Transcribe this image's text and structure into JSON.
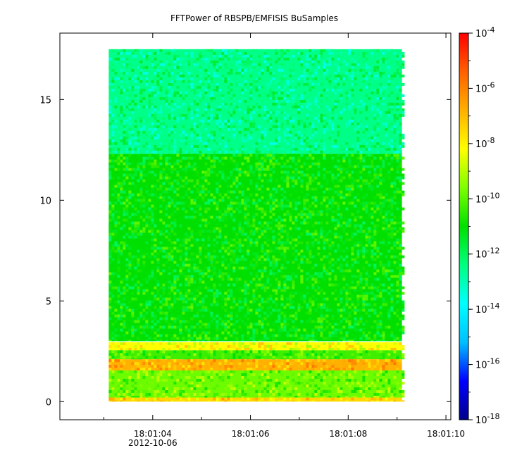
{
  "chart_data": {
    "type": "heatmap",
    "title": "FFTPower of RBSPB/EMFISIS  BuSamples",
    "xlabel": "",
    "ylabel": "",
    "x_ticks": [
      {
        "value": 4,
        "label": "18:01:04",
        "date_label": "2012-10-06"
      },
      {
        "value": 6,
        "label": "18:01:06"
      },
      {
        "value": 8,
        "label": "18:01:08"
      },
      {
        "value": 10,
        "label": "18:01:10"
      }
    ],
    "x_minor_ticks": [
      3,
      5,
      7,
      9
    ],
    "xlim": [
      2.1,
      10.1
    ],
    "data_x_range": [
      3.1,
      9.1
    ],
    "y_ticks": [
      0,
      5,
      10,
      15
    ],
    "ylim": [
      -0.9,
      18.3
    ],
    "data_y_range": [
      0,
      17.5
    ],
    "colorbar": {
      "scale": "log",
      "min_exponent": -18,
      "max_exponent": -4,
      "tick_exponents": [
        -4,
        -6,
        -8,
        -10,
        -12,
        -14,
        -16,
        -18
      ],
      "tick_base": "10",
      "colors": [
        "#00008b",
        "#0000ff",
        "#00bfff",
        "#00ffff",
        "#00ff7f",
        "#00e000",
        "#7fff00",
        "#ffff00",
        "#ffb000",
        "#ff6000",
        "#ff0000"
      ]
    },
    "bands": [
      {
        "y_range": [
          12.3,
          17.5
        ],
        "log_power_mean": -12.5,
        "description": "upper band"
      },
      {
        "y_range": [
          3.0,
          12.3
        ],
        "log_power_mean": -11.0
      },
      {
        "y_range": [
          2.55,
          2.95
        ],
        "log_power_mean": -8.2
      },
      {
        "y_range": [
          2.1,
          2.55
        ],
        "log_power_mean": -10.3
      },
      {
        "y_range": [
          1.55,
          2.1
        ],
        "log_power_mean": -6.8
      },
      {
        "y_range": [
          0.2,
          1.55
        ],
        "log_power_mean": -9.8
      },
      {
        "y_range": [
          0.0,
          0.2
        ],
        "log_power_mean": -7.5
      }
    ]
  }
}
